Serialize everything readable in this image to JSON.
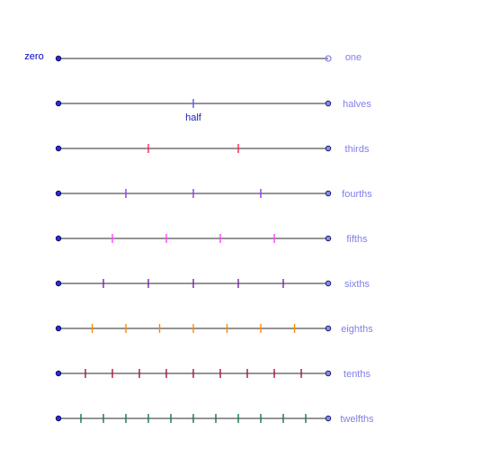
{
  "labels": {
    "zero": "zero",
    "one": "one",
    "half": "half"
  },
  "colors": {
    "line": "#555555",
    "endpoint_fill": "#2b2bd6",
    "endpoint_stroke": "#000055",
    "one_marker": "#8a8ae8",
    "row_label": "#8080e6",
    "zero_label": "#0000cc",
    "half_label": "#2020c0"
  },
  "rows": [
    {
      "name": "",
      "denominator": 1,
      "tick_color": "#5555ff"
    },
    {
      "name": "halves",
      "denominator": 2,
      "tick_color": "#5555ff"
    },
    {
      "name": "thirds",
      "denominator": 3,
      "tick_color": "#ff2255"
    },
    {
      "name": "fourths",
      "denominator": 4,
      "tick_color": "#9933ee"
    },
    {
      "name": "fifths",
      "denominator": 5,
      "tick_color": "#ff44ff"
    },
    {
      "name": "sixths",
      "denominator": 6,
      "tick_color": "#7722aa"
    },
    {
      "name": "eighths",
      "denominator": 8,
      "tick_color": "#ff8800"
    },
    {
      "name": "tenths",
      "denominator": 10,
      "tick_color": "#aa1133"
    },
    {
      "name": "twelfths",
      "denominator": 12,
      "tick_color": "#117744"
    }
  ]
}
